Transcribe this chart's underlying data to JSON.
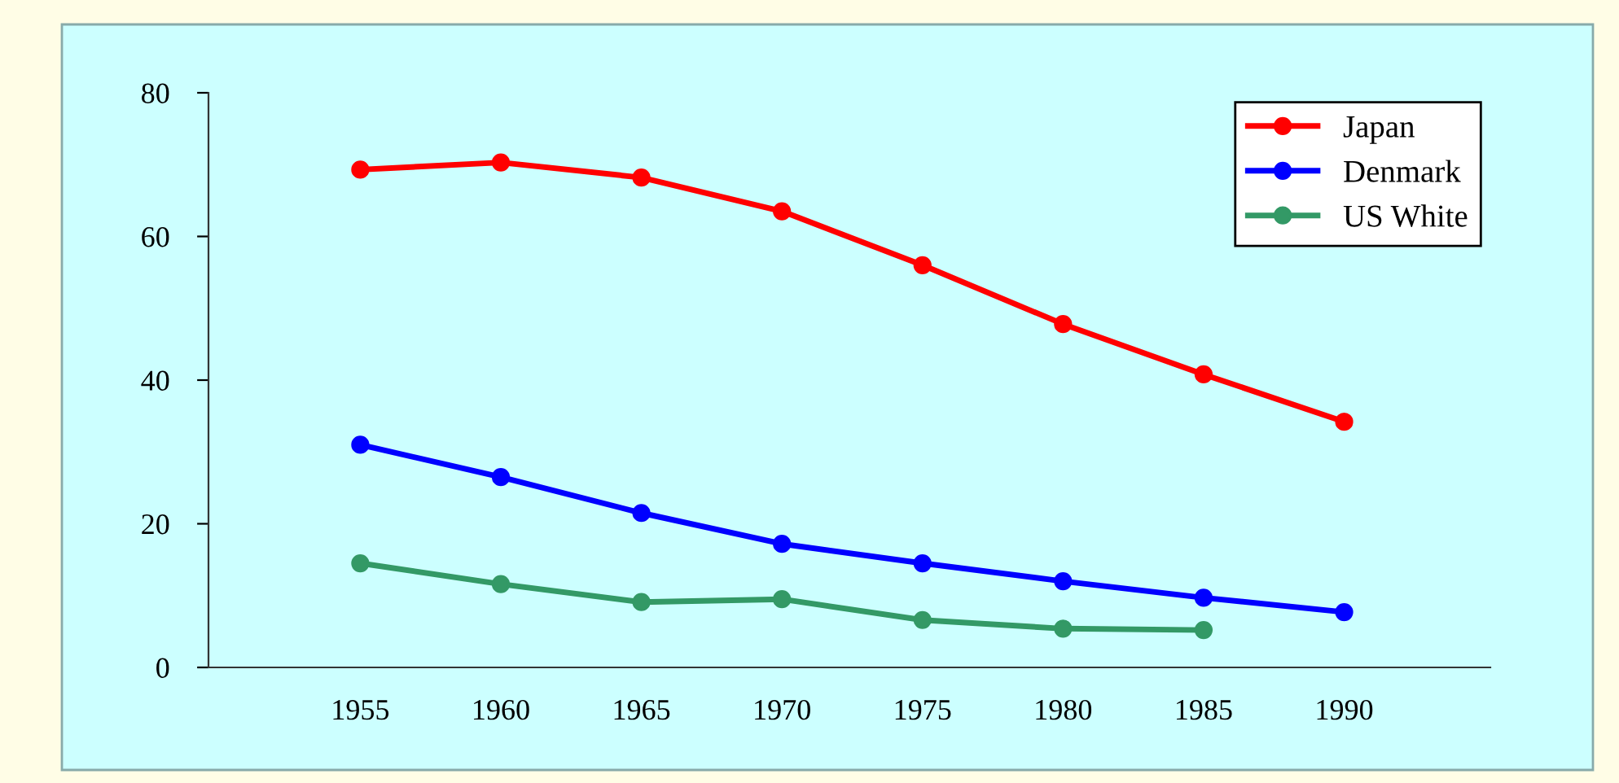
{
  "chart_data": {
    "type": "line",
    "x": [
      1955,
      1960,
      1965,
      1970,
      1975,
      1980,
      1985,
      1990
    ],
    "series": [
      {
        "name": "Japan",
        "color": "#ff0000",
        "values": [
          69.3,
          70.3,
          68.2,
          63.5,
          56,
          47.8,
          40.8,
          34.2
        ]
      },
      {
        "name": "Denmark",
        "color": "#0000ff",
        "values": [
          31,
          26.5,
          21.5,
          17.2,
          14.5,
          12,
          9.7,
          7.7
        ]
      },
      {
        "name": "US White",
        "color": "#339966",
        "values": [
          14.5,
          11.6,
          9.1,
          9.5,
          6.6,
          5.4,
          5.2,
          null
        ]
      }
    ],
    "xlim": [
      1949.6,
      1995.2
    ],
    "xticks": [
      1955,
      1960,
      1965,
      1970,
      1975,
      1980,
      1985,
      1990
    ],
    "ylim": [
      0,
      80
    ],
    "yticks": [
      0,
      20,
      40,
      60,
      80
    ],
    "marker": "circle",
    "line_style": "solid",
    "grid": false,
    "legend": "top right"
  }
}
